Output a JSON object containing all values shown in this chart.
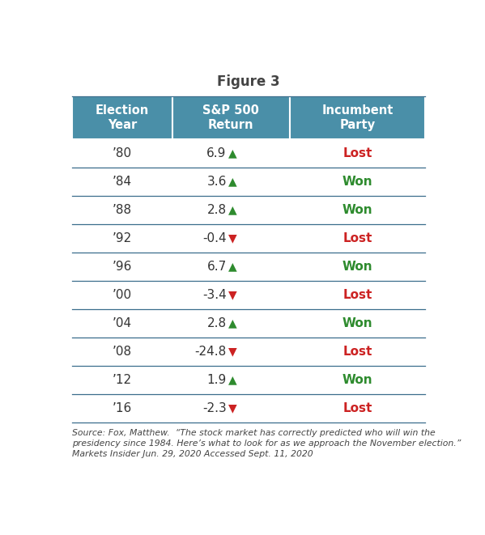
{
  "title": "Figure 3",
  "col_headers": [
    "Election\nYear",
    "S&P 500\nReturn",
    "Incumbent\nParty"
  ],
  "header_bg_color": "#4a8fa8",
  "header_text_color": "#ffffff",
  "rows": [
    {
      "year": "’80",
      "return_val": "6.9",
      "arrow": "up",
      "result": "Lost"
    },
    {
      "year": "’84",
      "return_val": "3.6",
      "arrow": "up",
      "result": "Won"
    },
    {
      "year": "’88",
      "return_val": "2.8",
      "arrow": "up",
      "result": "Won"
    },
    {
      "year": "’92",
      "return_val": "-0.4",
      "arrow": "down",
      "result": "Lost"
    },
    {
      "year": "’96",
      "return_val": "6.7",
      "arrow": "up",
      "result": "Won"
    },
    {
      "year": "’00",
      "return_val": "-3.4",
      "arrow": "down",
      "result": "Lost"
    },
    {
      "year": "’04",
      "return_val": "2.8",
      "arrow": "up",
      "result": "Won"
    },
    {
      "year": "’08",
      "return_val": "-24.8",
      "arrow": "down",
      "result": "Lost"
    },
    {
      "year": "’12",
      "return_val": "1.9",
      "arrow": "up",
      "result": "Won"
    },
    {
      "year": "’16",
      "return_val": "-2.3",
      "arrow": "down",
      "result": "Lost"
    }
  ],
  "up_arrow_color": "#2e8b2e",
  "down_arrow_color": "#cc2222",
  "won_color": "#2e8b2e",
  "lost_color": "#cc2222",
  "row_line_color": "#3a6d8c",
  "row_bg_color": "#ffffff",
  "source_line1": "Source: Fox, Matthew.  “The stock market has correctly predicted who will win the",
  "source_line2": "presidency since 1984. Here’s what to look for as we approach the November election.”",
  "source_line3": "Markets Insider Jun. 29, 2020 Accessed Sept. 11, 2020",
  "title_fontsize": 12,
  "header_fontsize": 10.5,
  "cell_fontsize": 11,
  "source_fontsize": 7.8,
  "fig_width": 5.99,
  "fig_height": 6.61,
  "dpi": 100
}
